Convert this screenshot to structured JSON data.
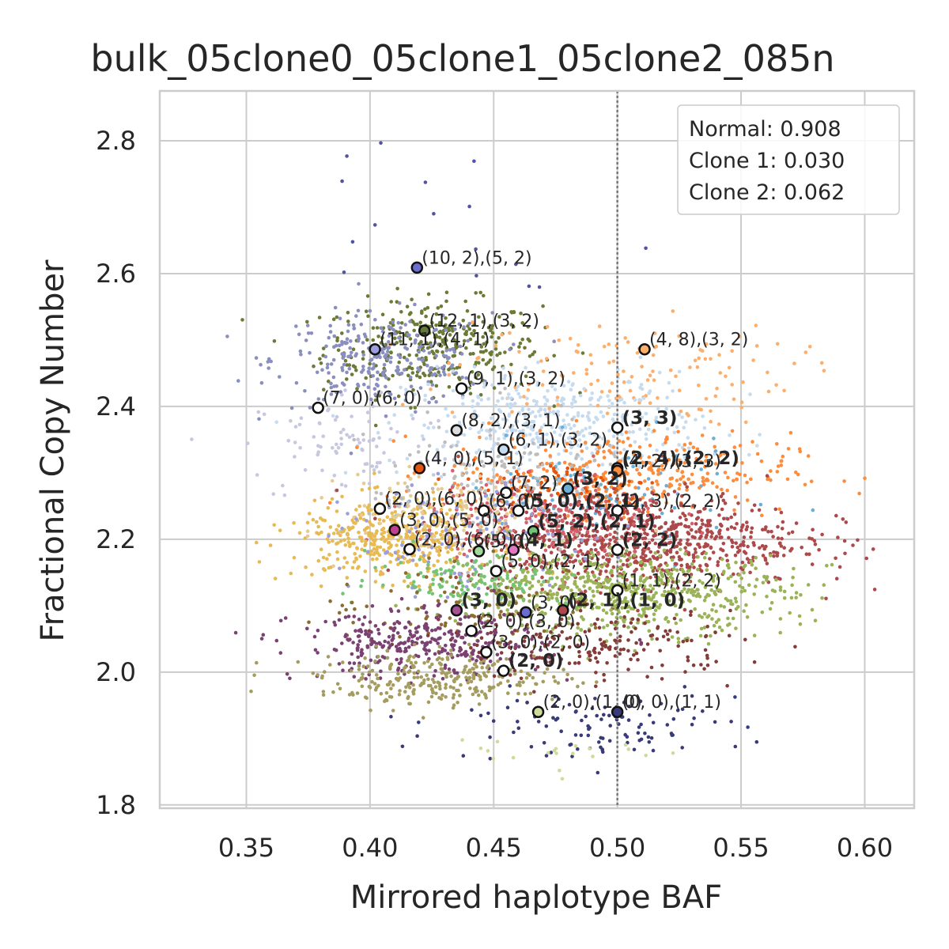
{
  "chart_data": {
    "type": "scatter",
    "title": "bulk_05clone0_05clone1_05clone2_085n",
    "xlabel": "Mirrored haplotype BAF",
    "ylabel": "Fractional Copy Number",
    "xlim": [
      0.315,
      0.62
    ],
    "ylim": [
      1.795,
      2.875
    ],
    "xticks": [
      0.35,
      0.4,
      0.45,
      0.5,
      0.55,
      0.6
    ],
    "xtick_labels": [
      "0.35",
      "0.40",
      "0.45",
      "0.50",
      "0.55",
      "0.60"
    ],
    "yticks": [
      1.8,
      2.0,
      2.2,
      2.4,
      2.6,
      2.8
    ],
    "ytick_labels": [
      "1.8",
      "2.0",
      "2.2",
      "2.4",
      "2.6",
      "2.8"
    ],
    "grid": true,
    "reference_line": {
      "x": 0.5,
      "style": "dotted",
      "color": "#777777"
    },
    "legend": {
      "position": "top-right",
      "entries": [
        "Normal: 0.908",
        "Clone 1: 0.030",
        "Clone 2: 0.062"
      ]
    },
    "clusters": [
      {
        "color": "#6b7a35",
        "cx": 0.425,
        "cy": 2.49,
        "sx": 0.022,
        "sy": 0.035,
        "n": 340
      },
      {
        "color": "#8a8fbf",
        "cx": 0.405,
        "cy": 2.47,
        "sx": 0.022,
        "sy": 0.035,
        "n": 260
      },
      {
        "color": "#c7c7e0",
        "cx": 0.392,
        "cy": 2.34,
        "sx": 0.022,
        "sy": 0.045,
        "n": 90
      },
      {
        "color": "#fdae6b",
        "cx": 0.5,
        "cy": 2.45,
        "sx": 0.035,
        "sy": 0.04,
        "n": 140
      },
      {
        "color": "#c6dbef",
        "cx": 0.475,
        "cy": 2.37,
        "sx": 0.03,
        "sy": 0.04,
        "n": 420
      },
      {
        "color": "#6baed6",
        "cx": 0.49,
        "cy": 2.26,
        "sx": 0.03,
        "sy": 0.04,
        "n": 110
      },
      {
        "color": "#fd8d3c",
        "cx": 0.5,
        "cy": 2.3,
        "sx": 0.035,
        "sy": 0.03,
        "n": 320
      },
      {
        "color": "#e6550d",
        "cx": 0.48,
        "cy": 2.28,
        "sx": 0.02,
        "sy": 0.02,
        "n": 90
      },
      {
        "color": "#ad494a",
        "cx": 0.505,
        "cy": 2.2,
        "sx": 0.035,
        "sy": 0.035,
        "n": 820
      },
      {
        "color": "#d6616b",
        "cx": 0.47,
        "cy": 2.23,
        "sx": 0.025,
        "sy": 0.035,
        "n": 220
      },
      {
        "color": "#e7ba52",
        "cx": 0.41,
        "cy": 2.2,
        "sx": 0.02,
        "sy": 0.03,
        "n": 420
      },
      {
        "color": "#e7cb94",
        "cx": 0.43,
        "cy": 2.24,
        "sx": 0.02,
        "sy": 0.03,
        "n": 120
      },
      {
        "color": "#bdbdbd",
        "cx": 0.45,
        "cy": 2.29,
        "sx": 0.025,
        "sy": 0.05,
        "n": 140
      },
      {
        "color": "#9c9ede",
        "cx": 0.44,
        "cy": 2.2,
        "sx": 0.025,
        "sy": 0.04,
        "n": 120
      },
      {
        "color": "#9ab356",
        "cx": 0.5,
        "cy": 2.12,
        "sx": 0.035,
        "sy": 0.03,
        "n": 680
      },
      {
        "color": "#74c476",
        "cx": 0.44,
        "cy": 2.14,
        "sx": 0.02,
        "sy": 0.02,
        "n": 120
      },
      {
        "color": "#8c6d31",
        "cx": 0.44,
        "cy": 2.1,
        "sx": 0.03,
        "sy": 0.03,
        "n": 90
      },
      {
        "color": "#843c39",
        "cx": 0.49,
        "cy": 2.04,
        "sx": 0.03,
        "sy": 0.025,
        "n": 200
      },
      {
        "color": "#7b4173",
        "cx": 0.42,
        "cy": 2.04,
        "sx": 0.025,
        "sy": 0.025,
        "n": 320
      },
      {
        "color": "#a59d60",
        "cx": 0.43,
        "cy": 1.99,
        "sx": 0.025,
        "sy": 0.02,
        "n": 280
      },
      {
        "color": "#393b79",
        "cx": 0.49,
        "cy": 1.92,
        "sx": 0.03,
        "sy": 0.025,
        "n": 110
      },
      {
        "color": "#5254a3",
        "cx": 0.43,
        "cy": 2.72,
        "sx": 0.03,
        "sy": 0.07,
        "n": 16
      },
      {
        "color": "#cedb9c",
        "cx": 0.47,
        "cy": 1.88,
        "sx": 0.02,
        "sy": 0.02,
        "n": 20
      }
    ],
    "annotations": [
      {
        "x": 0.419,
        "y": 2.609,
        "text": "(10, 2),(5, 2)",
        "fill": "#6b6ecf",
        "bold": false
      },
      {
        "x": 0.422,
        "y": 2.514,
        "text": "(12, 1),(3, 2)",
        "fill": "#637939",
        "bold": false
      },
      {
        "x": 0.402,
        "y": 2.486,
        "text": "(11, 1),(4, 1)",
        "fill": "#9c9ede",
        "bold": false
      },
      {
        "x": 0.511,
        "y": 2.486,
        "text": "(4, 8),(3, 2)",
        "fill": "#fdae6b",
        "bold": false
      },
      {
        "x": 0.437,
        "y": 2.427,
        "text": "(9, 1),(3, 2)",
        "fill": "#ffffff",
        "bold": false
      },
      {
        "x": 0.379,
        "y": 2.398,
        "text": "(7, 0),(6, 0)",
        "fill": "#ffffff",
        "bold": false
      },
      {
        "x": 0.435,
        "y": 2.364,
        "text": "(8, 2),(3, 1)",
        "fill": "#dddddd",
        "bold": false
      },
      {
        "x": 0.5,
        "y": 2.368,
        "text": "(3, 3)",
        "fill": "#ffffff",
        "bold": true
      },
      {
        "x": 0.454,
        "y": 2.335,
        "text": "(6, 1),(3, 2)",
        "fill": "#c6dbef",
        "bold": false
      },
      {
        "x": 0.42,
        "y": 2.307,
        "text": "(4, 0),(5, 1)",
        "fill": "#e6550d",
        "bold": false
      },
      {
        "x": 0.5,
        "y": 2.307,
        "text": "(2, 4),(2, 2)",
        "fill": "#fd8d3c",
        "bold": true
      },
      {
        "x": 0.5,
        "y": 2.303,
        "text": "(4, 2),(3, 3)",
        "fill": "#fd8d3c",
        "bold": false
      },
      {
        "x": 0.455,
        "y": 2.27,
        "text": "(7, 2)",
        "fill": "#ffffff",
        "bold": false
      },
      {
        "x": 0.48,
        "y": 2.276,
        "text": "(3, 2)",
        "fill": "#6baed6",
        "bold": true
      },
      {
        "x": 0.404,
        "y": 2.246,
        "text": "(2, 0),(6, 0)",
        "fill": "#ffffff",
        "bold": false
      },
      {
        "x": 0.446,
        "y": 2.243,
        "text": "(6, 0)",
        "fill": "#ffffff",
        "bold": false
      },
      {
        "x": 0.46,
        "y": 2.243,
        "text": "(5, 0),(2, 1)",
        "fill": "#ffffff",
        "bold": true
      },
      {
        "x": 0.5,
        "y": 2.243,
        "text": "(2, 3),(2, 2)",
        "fill": "#ffffff",
        "bold": false
      },
      {
        "x": 0.41,
        "y": 2.214,
        "text": "(3, 0),(5, 0)",
        "fill": "#c04090",
        "bold": false
      },
      {
        "x": 0.466,
        "y": 2.212,
        "text": "(5, 2),(2, 1)",
        "fill": "#74c476",
        "bold": true
      },
      {
        "x": 0.416,
        "y": 2.185,
        "text": "(2, 0),(6, 0)",
        "fill": "#ffffff",
        "bold": false
      },
      {
        "x": 0.444,
        "y": 2.182,
        "text": "(5, 0)",
        "fill": "#a1d99b",
        "bold": false
      },
      {
        "x": 0.458,
        "y": 2.184,
        "text": "(4, 1)",
        "fill": "#e377c2",
        "bold": true
      },
      {
        "x": 0.5,
        "y": 2.184,
        "text": "(2, 2)",
        "fill": "#ffffff",
        "bold": true
      },
      {
        "x": 0.451,
        "y": 2.152,
        "text": "(5, 0),(2, 1)",
        "fill": "#ffffff",
        "bold": false
      },
      {
        "x": 0.5,
        "y": 2.123,
        "text": "(1, 1),(2, 2)",
        "fill": "#ffffff",
        "bold": false
      },
      {
        "x": 0.435,
        "y": 2.093,
        "text": "(3, 0)",
        "fill": "#a55194",
        "bold": true
      },
      {
        "x": 0.463,
        "y": 2.09,
        "text": "(3, 0)",
        "fill": "#6b6ecf",
        "bold": false
      },
      {
        "x": 0.478,
        "y": 2.093,
        "text": "(2, 1),(1, 0)",
        "fill": "#ad494a",
        "bold": true
      },
      {
        "x": 0.441,
        "y": 2.062,
        "text": "(2, 0),(3, 0)",
        "fill": "#ffffff",
        "bold": false
      },
      {
        "x": 0.447,
        "y": 2.03,
        "text": "(3, 0),(2, 0)",
        "fill": "#ffffff",
        "bold": false
      },
      {
        "x": 0.454,
        "y": 2.002,
        "text": "(2, 0)",
        "fill": "#ffffff",
        "bold": true
      },
      {
        "x": 0.468,
        "y": 1.94,
        "text": "(2, 0),(1, 0)",
        "fill": "#cedb9c",
        "bold": false
      },
      {
        "x": 0.5,
        "y": 1.94,
        "text": "(0, 0),(1, 1)",
        "fill": "#393b79",
        "bold": false
      }
    ]
  }
}
